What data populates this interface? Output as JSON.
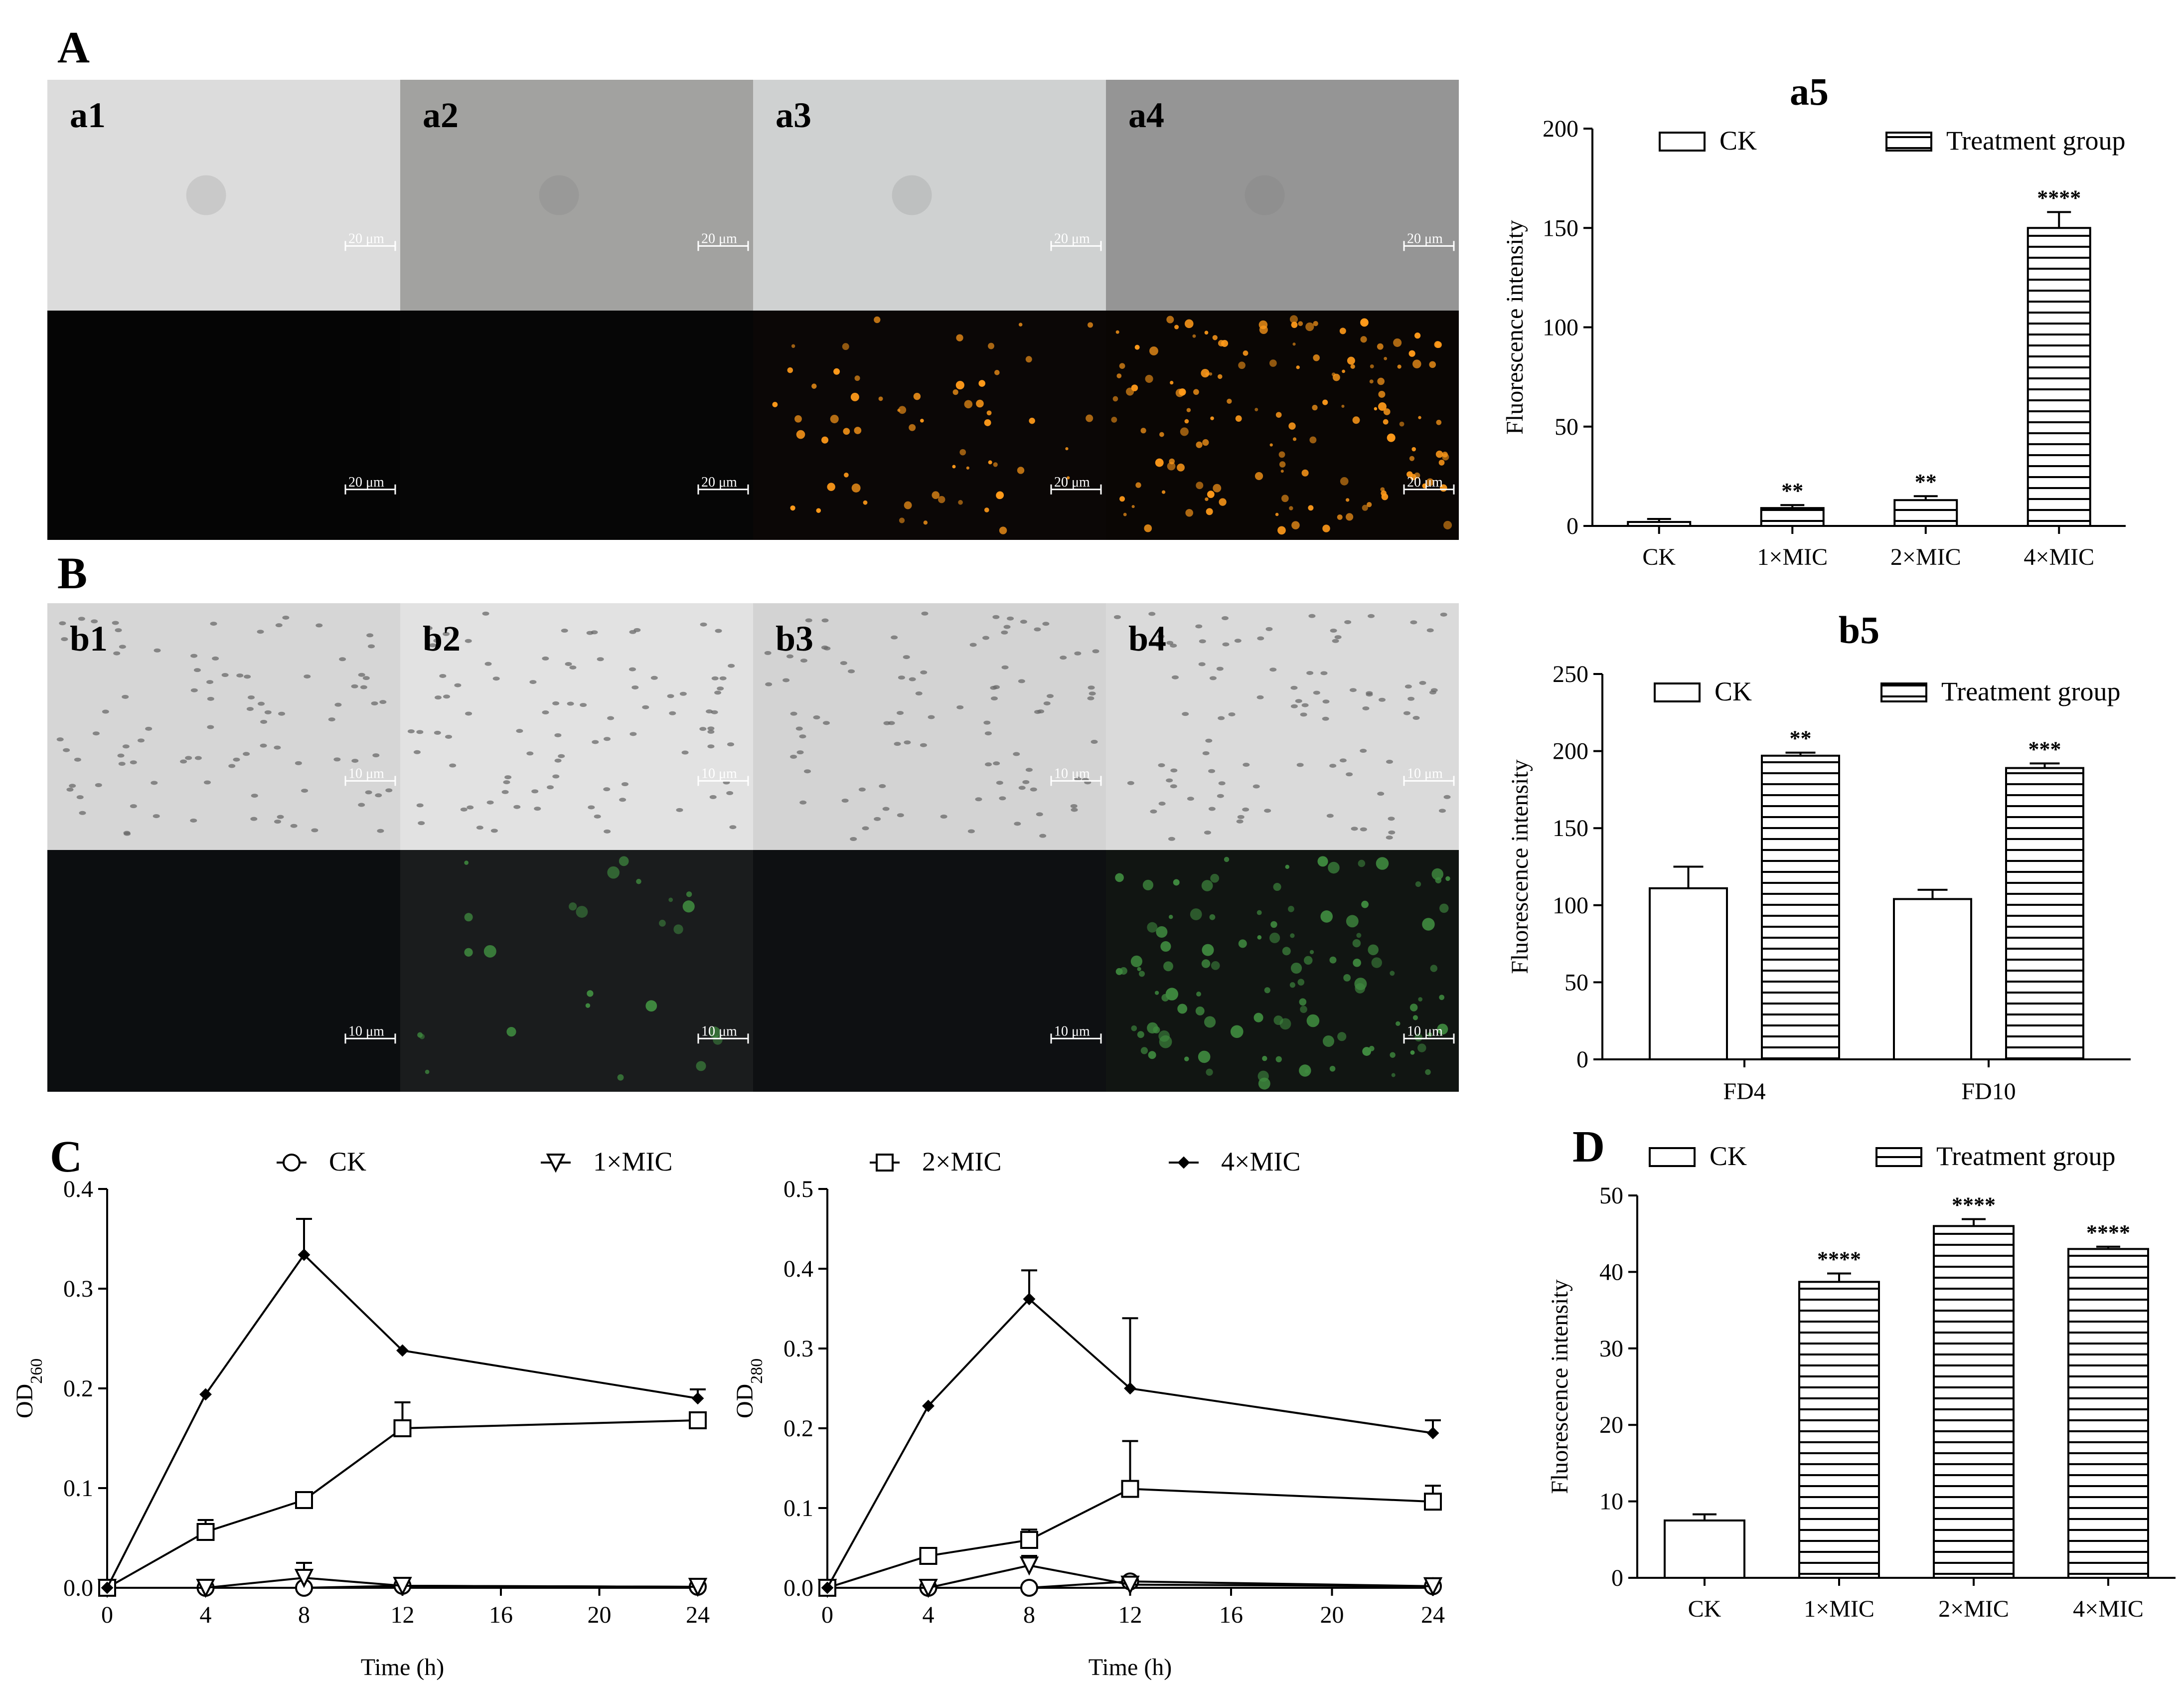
{
  "panels": {
    "A": "A",
    "B": "B",
    "C": "C",
    "D": "D"
  },
  "micrographs": {
    "row_a": [
      {
        "label": "a1",
        "bright_fill": "#dcdcdc",
        "fluor_fill": "#050505",
        "scale": "20 μm",
        "dots": 0
      },
      {
        "label": "a2",
        "bright_fill": "#a2a2a0",
        "fluor_fill": "#060606",
        "scale": "20 μm",
        "dots": 0
      },
      {
        "label": "a3",
        "bright_fill": "#cfd1d1",
        "fluor_fill": "#0b0706",
        "scale": "20 μm",
        "dots": 60
      },
      {
        "label": "a4",
        "bright_fill": "#959595",
        "fluor_fill": "#0a0604",
        "scale": "20 μm",
        "dots": 140
      }
    ],
    "row_b": [
      {
        "label": "b1",
        "bright_fill": "#d6d6d6",
        "fluor_fill": "#0c0e10",
        "scale": "10 μm",
        "dots": 0
      },
      {
        "label": "b2",
        "bright_fill": "#e2e2e2",
        "fluor_fill": "#1a1c1d",
        "scale": "10 μm",
        "dots": 25
      },
      {
        "label": "b3",
        "bright_fill": "#d3d3d3",
        "fluor_fill": "#0e1012",
        "scale": "10 μm",
        "dots": 0
      },
      {
        "label": "b4",
        "bright_fill": "#dadada",
        "fluor_fill": "#111512",
        "scale": "10 μm",
        "dots": 110
      }
    ],
    "fluor_colors": {
      "row_a": "#ff9a1a",
      "row_b": "#3f8a3f"
    },
    "scale_colors": {
      "bright": "#ffffff",
      "fluor": "#ffffff"
    }
  },
  "chart_data": [
    {
      "id": "a5",
      "type": "bar",
      "title": "a5",
      "categories": [
        "CK",
        "1×MIC",
        "2×MIC",
        "4×MIC"
      ],
      "values": [
        2,
        9,
        13,
        150
      ],
      "errors": [
        1.5,
        1.5,
        2,
        8
      ],
      "patterns": [
        "open",
        "hatched",
        "hatched",
        "hatched"
      ],
      "significance": [
        "",
        "**",
        "**",
        "****"
      ],
      "ylabel": "Fluorescence intensity",
      "xlabel": "",
      "ylim": [
        0,
        200
      ],
      "yticks": [
        "0",
        "50",
        "100",
        "150",
        "200"
      ],
      "legend": [
        "CK",
        "Treatment group"
      ]
    },
    {
      "id": "b5",
      "type": "bar",
      "title": "b5",
      "categories": [
        "FD4",
        "FD10"
      ],
      "series": [
        {
          "name": "CK",
          "values": [
            111,
            104
          ],
          "errors": [
            14,
            6
          ]
        },
        {
          "name": "Treatment group",
          "values": [
            197,
            189
          ],
          "errors": [
            2,
            3
          ]
        }
      ],
      "significance": [
        "**",
        "***"
      ],
      "ylabel": "Fluorescence intensity",
      "xlabel": "",
      "ylim": [
        0,
        250
      ],
      "yticks": [
        "0",
        "50",
        "100",
        "150",
        "200",
        "250"
      ],
      "legend": [
        "CK",
        "Treatment group"
      ]
    },
    {
      "id": "c_od260",
      "type": "line",
      "x": [
        0,
        4,
        8,
        12,
        24
      ],
      "series": [
        {
          "name": "CK",
          "marker": "circle",
          "values": [
            0,
            0,
            0,
            0.002,
            0.001
          ],
          "errors": [
            0,
            0,
            0,
            0.003,
            0.002
          ]
        },
        {
          "name": "1×MIC",
          "marker": "triangle",
          "values": [
            0,
            0,
            0.01,
            0.002,
            0.001
          ],
          "errors": [
            0,
            0,
            0.015,
            0,
            0
          ]
        },
        {
          "name": "2×MIC",
          "marker": "square",
          "values": [
            0,
            0.056,
            0.088,
            0.16,
            0.168
          ],
          "errors": [
            0,
            0.012,
            0.004,
            0.026,
            0.008
          ]
        },
        {
          "name": "4×MIC",
          "marker": "diamond",
          "values": [
            0,
            0.194,
            0.334,
            0.238,
            0.19
          ],
          "errors": [
            0,
            0,
            0.036,
            0,
            0.009
          ]
        }
      ],
      "ylabel_main": "OD",
      "ylabel_sub": "260",
      "xlabel": "Time (h)",
      "xlim": [
        0,
        24
      ],
      "xticks": [
        "0",
        "4",
        "8",
        "12",
        "16",
        "20",
        "24"
      ],
      "ylim": [
        0,
        0.4
      ],
      "yticks": [
        "0.0",
        "0.1",
        "0.2",
        "0.3",
        "0.4"
      ]
    },
    {
      "id": "c_od280",
      "type": "line",
      "x": [
        0,
        4,
        8,
        12,
        24
      ],
      "series": [
        {
          "name": "CK",
          "marker": "circle",
          "values": [
            0,
            0,
            0,
            0.008,
            0.002
          ],
          "errors": [
            0,
            0,
            0,
            0.004,
            0.002
          ]
        },
        {
          "name": "1×MIC",
          "marker": "triangle",
          "values": [
            0,
            0,
            0.028,
            0.004,
            0.002
          ],
          "errors": [
            0,
            0,
            0.012,
            0,
            0
          ]
        },
        {
          "name": "2×MIC",
          "marker": "square",
          "values": [
            0,
            0.04,
            0.06,
            0.124,
            0.108
          ],
          "errors": [
            0,
            0,
            0.013,
            0.06,
            0.02
          ]
        },
        {
          "name": "4×MIC",
          "marker": "diamond",
          "values": [
            0,
            0.228,
            0.362,
            0.25,
            0.194
          ],
          "errors": [
            0,
            0,
            0.036,
            0.088,
            0.016
          ]
        }
      ],
      "ylabel_main": "OD",
      "ylabel_sub": "280",
      "xlabel": "Time (h)",
      "xlim": [
        0,
        24
      ],
      "xticks": [
        "0",
        "4",
        "8",
        "12",
        "16",
        "20",
        "24"
      ],
      "ylim": [
        0,
        0.5
      ],
      "yticks": [
        "0.0",
        "0.1",
        "0.2",
        "0.3",
        "0.4",
        "0.5"
      ]
    },
    {
      "id": "d",
      "type": "bar",
      "categories": [
        "CK",
        "1×MIC",
        "2×MIC",
        "4×MIC"
      ],
      "values": [
        7.5,
        38.7,
        46,
        43
      ],
      "errors": [
        0.8,
        1.1,
        0.9,
        0.3
      ],
      "patterns": [
        "open",
        "hatched",
        "hatched",
        "hatched"
      ],
      "significance": [
        "",
        "****",
        "****",
        "****"
      ],
      "ylabel": "Fluorescence intensity",
      "xlabel": "",
      "ylim": [
        0,
        50
      ],
      "yticks": [
        "0",
        "10",
        "20",
        "30",
        "40",
        "50"
      ],
      "legend": [
        "CK",
        "Treatment group"
      ]
    }
  ],
  "line_legend": [
    "CK",
    "1×MIC",
    "2×MIC",
    "4×MIC"
  ]
}
